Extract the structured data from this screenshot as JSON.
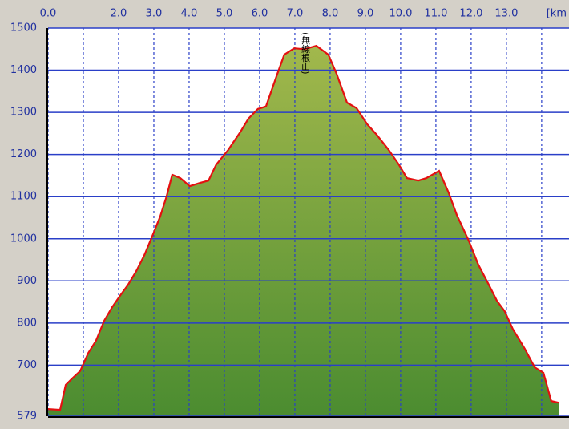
{
  "chart_data": {
    "type": "area-line",
    "x_unit": "[km",
    "annotation": {
      "text": "(無線根山)",
      "x": 7.3
    },
    "x": [
      0,
      0.34,
      0.5,
      0.68,
      0.91,
      1.14,
      1.36,
      1.59,
      1.82,
      2.05,
      2.27,
      2.5,
      2.73,
      2.95,
      3.18,
      3.36,
      3.52,
      3.75,
      4.02,
      4.32,
      4.55,
      4.77,
      5.11,
      5.45,
      5.68,
      5.95,
      6.18,
      6.48,
      6.7,
      6.98,
      7.27,
      7.61,
      7.95,
      8.18,
      8.48,
      8.75,
      9.05,
      9.32,
      9.66,
      9.95,
      10.18,
      10.5,
      10.73,
      11.09,
      11.36,
      11.59,
      11.93,
      12.2,
      12.5,
      12.73,
      12.95,
      13.18,
      13.52,
      13.8,
      14.05,
      14.27,
      14.48
    ],
    "series": [
      {
        "color": "#e41010",
        "fill_top": "#a2b84c",
        "fill_bottom": "#4b8c30",
        "values": [
          596,
          594,
          653,
          668,
          686,
          729,
          758,
          805,
          838,
          866,
          891,
          923,
          961,
          1005,
          1053,
          1100,
          1152,
          1144,
          1125,
          1133,
          1138,
          1176,
          1211,
          1253,
          1285,
          1308,
          1314,
          1386,
          1437,
          1452,
          1450,
          1458,
          1437,
          1392,
          1323,
          1310,
          1272,
          1247,
          1211,
          1176,
          1144,
          1138,
          1144,
          1161,
          1110,
          1057,
          996,
          939,
          891,
          853,
          828,
          786,
          739,
          695,
          682,
          615,
          611
        ]
      }
    ],
    "xlim": [
      0,
      14.48
    ],
    "ylim": [
      579,
      1500
    ],
    "xticks": [
      {
        "value": 0,
        "label": "0.0"
      },
      {
        "value": 1,
        "label": null
      },
      {
        "value": 2,
        "label": "2.0"
      },
      {
        "value": 3,
        "label": "3.0"
      },
      {
        "value": 4,
        "label": "4.0"
      },
      {
        "value": 5,
        "label": "5.0"
      },
      {
        "value": 6,
        "label": "6.0"
      },
      {
        "value": 7,
        "label": "7.0"
      },
      {
        "value": 8,
        "label": "8.0"
      },
      {
        "value": 9,
        "label": "9.0"
      },
      {
        "value": 10,
        "label": "10.0"
      },
      {
        "value": 11,
        "label": "11.0"
      },
      {
        "value": 12,
        "label": "12.0"
      },
      {
        "value": 13,
        "label": "13.0"
      },
      {
        "value": 14,
        "label": null
      }
    ],
    "yticks": [
      579,
      700,
      800,
      900,
      1000,
      1100,
      1200,
      1300,
      1400,
      1500
    ],
    "grid": true,
    "grid_color": "#2a3fc8"
  }
}
